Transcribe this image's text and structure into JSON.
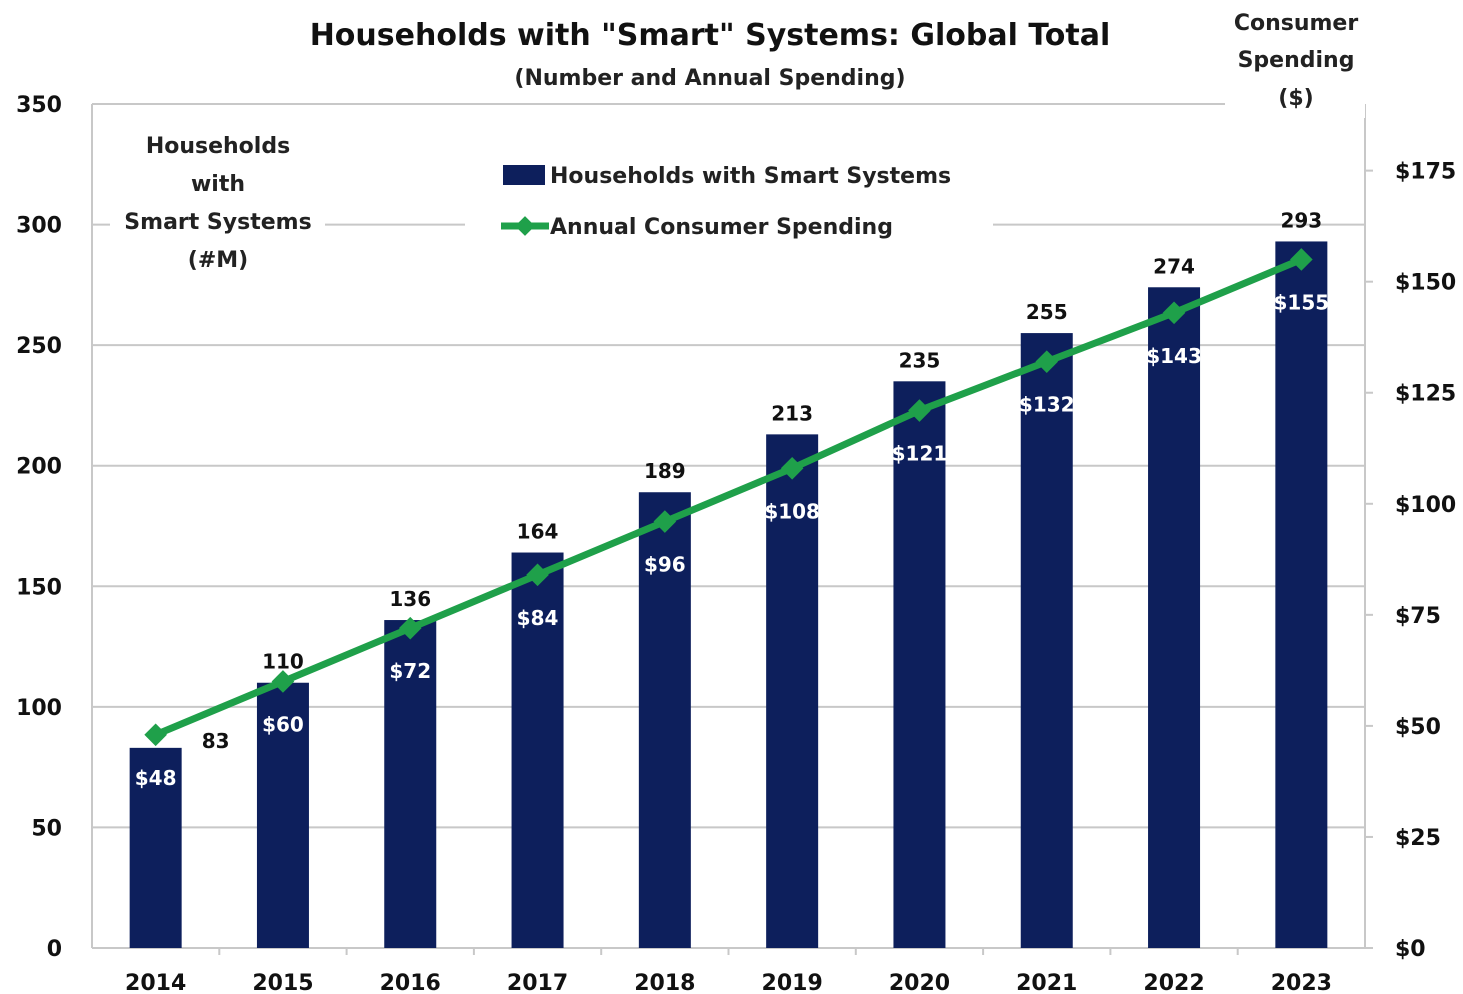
{
  "chart_data": {
    "type": "bar",
    "title": "Households with \"Smart\" Systems: Global Total",
    "subtitle": "(Number and Annual Spending)",
    "categories": [
      "2014",
      "2015",
      "2016",
      "2017",
      "2018",
      "2019",
      "2020",
      "2021",
      "2022",
      "2023"
    ],
    "series": [
      {
        "name": "Households with Smart Systems",
        "type": "bar",
        "axis": "left",
        "values": [
          83,
          110,
          136,
          164,
          189,
          213,
          235,
          255,
          274,
          293
        ],
        "labels": [
          "83",
          "110",
          "136",
          "164",
          "189",
          "213",
          "235",
          "255",
          "274",
          "293"
        ],
        "color": "#0d1f5c"
      },
      {
        "name": "Annual Consumer Spending",
        "type": "line",
        "axis": "right",
        "values": [
          48,
          60,
          72,
          84,
          96,
          108,
          121,
          132,
          143,
          155
        ],
        "labels": [
          "$48",
          "$60",
          "$72",
          "$84",
          "$96",
          "$108",
          "$121",
          "$132",
          "$143",
          "$155"
        ],
        "color": "#1fa04a"
      }
    ],
    "y_left": {
      "label": [
        "Households",
        "with",
        "Smart Systems",
        "(#M)"
      ],
      "ylim": [
        0,
        350
      ],
      "ticks": [
        "0",
        "50",
        "100",
        "150",
        "200",
        "250",
        "300",
        "350"
      ]
    },
    "y_right": {
      "label": [
        "Consumer",
        "Spending",
        "($)"
      ],
      "ylim": [
        0,
        190
      ],
      "ticks": [
        "$0",
        "$25",
        "$50",
        "$75",
        "$100",
        "$125",
        "$150",
        "$175"
      ]
    },
    "grid": true,
    "legend_position": "top-center"
  }
}
